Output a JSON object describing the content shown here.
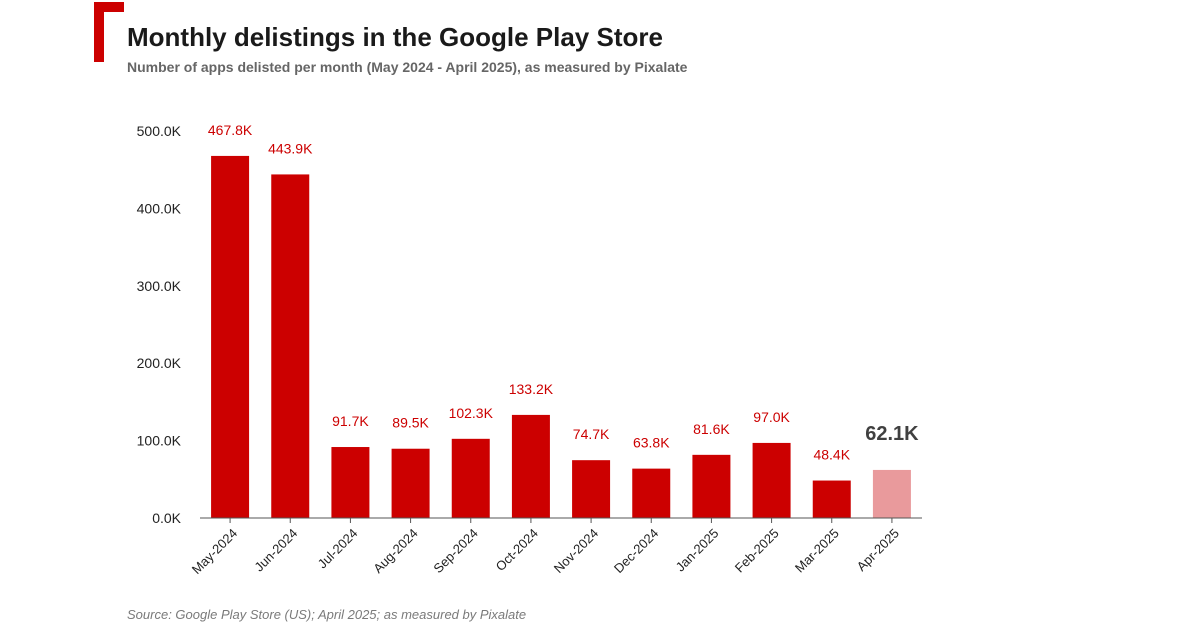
{
  "title": "Monthly delistings in the Google Play Store",
  "subtitle": "Number of apps delisted per month (May 2024 - April 2025), as measured by Pixalate",
  "source": "Source: Google Play Store (US); April 2025; as measured by Pixalate",
  "colors": {
    "accent": "#cc0000",
    "bar": "#cc0000",
    "highlight_bar": "#e99a9c",
    "highlight_label": "#404040"
  },
  "chart_data": {
    "type": "bar",
    "categories": [
      "May-2024",
      "Jun-2024",
      "Jul-2024",
      "Aug-2024",
      "Sep-2024",
      "Oct-2024",
      "Nov-2024",
      "Dec-2024",
      "Jan-2025",
      "Feb-2025",
      "Mar-2025",
      "Apr-2025"
    ],
    "values": [
      467.8,
      443.9,
      91.7,
      89.5,
      102.3,
      133.2,
      74.7,
      63.8,
      81.6,
      97.0,
      48.4,
      62.1
    ],
    "value_labels": [
      "467.8K",
      "443.9K",
      "91.7K",
      "89.5K",
      "102.3K",
      "133.2K",
      "74.7K",
      "63.8K",
      "81.6K",
      "97.0K",
      "48.4K",
      "62.1K"
    ],
    "highlight_index": 11,
    "y_ticks": [
      0,
      100,
      200,
      300,
      400,
      500
    ],
    "y_tick_labels": [
      "0.0K",
      "100.0K",
      "200.0K",
      "300.0K",
      "400.0K",
      "500.0K"
    ],
    "ylim": [
      0,
      500
    ],
    "grid": false,
    "legend": "none"
  }
}
